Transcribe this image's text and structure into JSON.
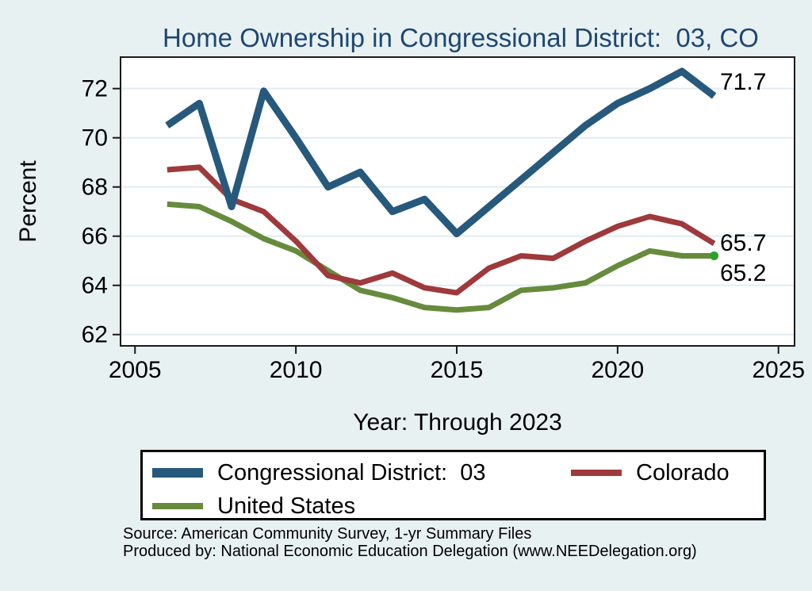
{
  "title": "Home Ownership in Congressional District:  03, CO",
  "axes": {
    "x_label": "Year: Through 2023",
    "y_label": "Percent"
  },
  "legend": {
    "items": [
      {
        "label": "Congressional District:  03",
        "series": "district03"
      },
      {
        "label": "Colorado",
        "series": "colorado"
      },
      {
        "label": "United States",
        "series": "us"
      }
    ]
  },
  "footer": {
    "source": "Source: American Community Survey, 1-yr Summary Files",
    "produced_by": "Produced by: National Economic Education Delegation (www.NEEDelegation.org)"
  },
  "colors": {
    "background": "#E8F1F2",
    "plot_background": "#FFFFFF",
    "title": "#1F4673",
    "gridline": "#E0EDF2",
    "axis": "#1A1A1A",
    "district03": "#26597C",
    "colorado": "#9E393C",
    "us": "#668B3C",
    "us_end_marker": "#2DA12D"
  },
  "chart_data": {
    "type": "line",
    "x": [
      2006,
      2007,
      2008,
      2009,
      2010,
      2011,
      2012,
      2013,
      2014,
      2015,
      2016,
      2017,
      2018,
      2019,
      2020,
      2021,
      2022,
      2023
    ],
    "series": [
      {
        "name": "Congressional District:  03",
        "key": "district03",
        "color": "#26597C",
        "line_width": 9,
        "values": [
          70.5,
          71.4,
          67.2,
          71.9,
          70.0,
          68.0,
          68.6,
          67.0,
          67.5,
          66.1,
          67.2,
          68.3,
          69.4,
          70.5,
          71.4,
          72.0,
          72.7,
          71.7
        ],
        "end_label": "71.7"
      },
      {
        "name": "Colorado",
        "key": "colorado",
        "color": "#9E393C",
        "line_width": 7,
        "values": [
          68.7,
          68.8,
          67.5,
          67.0,
          65.8,
          64.4,
          64.1,
          64.5,
          63.9,
          63.7,
          64.7,
          65.2,
          65.1,
          65.8,
          66.4,
          66.8,
          66.5,
          65.7
        ],
        "end_label": "65.7"
      },
      {
        "name": "United States",
        "key": "us",
        "color": "#668B3C",
        "line_width": 7,
        "values": [
          67.3,
          67.2,
          66.6,
          65.9,
          65.4,
          64.6,
          63.8,
          63.5,
          63.1,
          63.0,
          63.1,
          63.8,
          63.9,
          64.1,
          64.8,
          65.4,
          65.2,
          65.2
        ],
        "end_label": "65.2",
        "end_marker": true,
        "end_marker_color": "#2DA12D"
      }
    ],
    "x_ticks": [
      2005,
      2010,
      2015,
      2020,
      2025
    ],
    "y_ticks": [
      62,
      64,
      66,
      68,
      70,
      72
    ],
    "xlim": [
      2004.55,
      2025.5
    ],
    "ylim": [
      61.54,
      73.28
    ],
    "grid": "horizontal",
    "legend_position": "bottom"
  }
}
